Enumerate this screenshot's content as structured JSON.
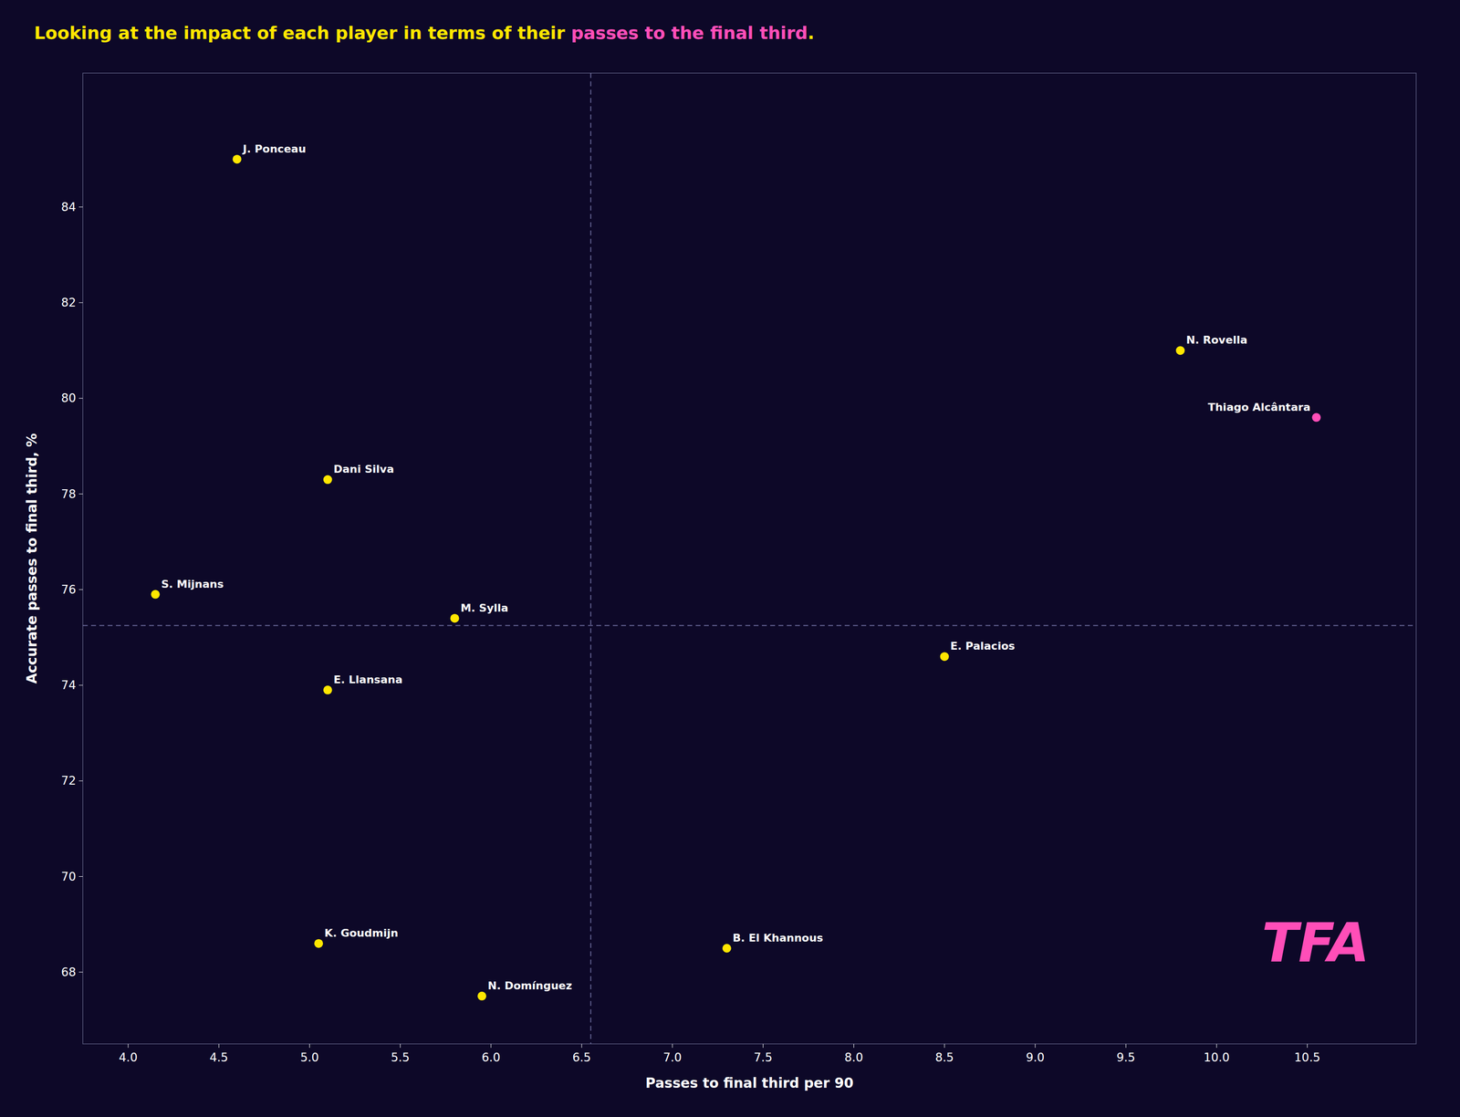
{
  "chart_data": {
    "type": "scatter",
    "title": "Looking at the impact of each player in terms of their passes to the final third.",
    "title_color": "#FFE600",
    "title_highlight": {
      "text": "passes to the final third",
      "color": "#FF4EB8"
    },
    "x_label": "Passes to final third per 90",
    "y_label": "Accurate passes to final third, %",
    "x": [
      4.6,
      4.15,
      5.1,
      5.1,
      5.8,
      5.05,
      5.95,
      7.3,
      8.5,
      9.8,
      10.55
    ],
    "values": [
      85.0,
      75.9,
      78.3,
      73.9,
      75.4,
      68.6,
      67.5,
      68.5,
      74.6,
      81.0,
      79.6
    ],
    "annotations": [
      "J. Ponceau",
      "S. Mijnans",
      "Dani Silva",
      "E. Llansana",
      "M. Sylla",
      "K. Goudmijn",
      "N. Domínguez",
      "B. El Khannous",
      "E. Palacios",
      "N. Rovella",
      "Thiago Alcântara"
    ],
    "colors": [
      "#FFE600",
      "#FFE600",
      "#FFE600",
      "#FFE600",
      "#FFE600",
      "#FFE600",
      "#FFE600",
      "#FFE600",
      "#FFE600",
      "#FFE600",
      "#FF4EB8"
    ],
    "reference_lines": [
      {
        "axis": "x",
        "value": 6.55,
        "color": "#7777AA"
      },
      {
        "axis": "y",
        "value": 75.25,
        "color": "#7777AA"
      }
    ],
    "watermark": {
      "text": "TFA",
      "color": "#FF4EB8"
    },
    "background_color": "#0D0828",
    "text_color": "#FFFFFF",
    "xlim": [
      3.75,
      11.1
    ],
    "ylim": [
      66.5,
      86.8
    ],
    "xticks": [
      {
        "value": 4.0,
        "label": "4.0"
      },
      4.5,
      {
        "value": 5.0,
        "label": "5.0"
      },
      5.5,
      {
        "value": 6.0,
        "label": "6.0"
      },
      6.5,
      {
        "value": 7.0,
        "label": "7.0"
      },
      7.5,
      {
        "value": 8.0,
        "label": "8.0"
      },
      8.5,
      {
        "value": 9.0,
        "label": "9.0"
      },
      9.5,
      {
        "value": 10.0,
        "label": "10.0"
      },
      10.5
    ],
    "yticks": [
      68,
      70,
      72,
      74,
      76,
      78,
      80,
      82,
      84
    ],
    "grid": false
  }
}
